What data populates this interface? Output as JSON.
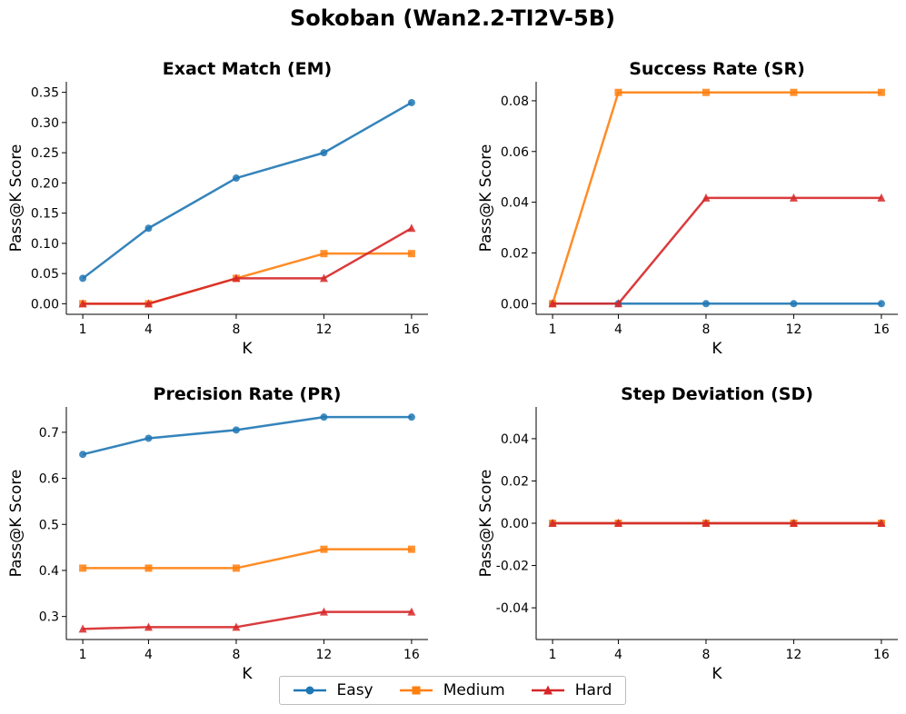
{
  "title": "Sokoban (Wan2.2-TI2V-5B)",
  "legend": [
    {
      "name": "Easy",
      "color": "#1f77b4",
      "marker": "circle"
    },
    {
      "name": "Medium",
      "color": "#ff7f0e",
      "marker": "square"
    },
    {
      "name": "Hard",
      "color": "#d62728",
      "marker": "triangle"
    }
  ],
  "chart_data": [
    {
      "type": "line",
      "title": "Exact Match (EM)",
      "xlabel": "K",
      "ylabel": "Pass@K Score",
      "x": [
        1,
        4,
        8,
        12,
        16
      ],
      "xticks": [
        "1",
        "4",
        "8",
        "12",
        "16"
      ],
      "ylim": [
        -0.0175,
        0.3675
      ],
      "yticks": [
        "0.00",
        "0.05",
        "0.10",
        "0.15",
        "0.20",
        "0.25",
        "0.30",
        "0.35"
      ],
      "ytick_values": [
        0,
        0.05,
        0.1,
        0.15,
        0.2,
        0.25,
        0.3,
        0.35
      ],
      "series": [
        {
          "name": "Easy",
          "values": [
            0.042,
            0.125,
            0.208,
            0.25,
            0.333
          ]
        },
        {
          "name": "Medium",
          "values": [
            0.0,
            0.0,
            0.042,
            0.083,
            0.083
          ]
        },
        {
          "name": "Hard",
          "values": [
            0.0,
            0.0,
            0.042,
            0.042,
            0.125
          ]
        }
      ]
    },
    {
      "type": "line",
      "title": "Success Rate (SR)",
      "xlabel": "K",
      "ylabel": "Pass@K Score",
      "x": [
        1,
        4,
        8,
        12,
        16
      ],
      "xticks": [
        "1",
        "4",
        "8",
        "12",
        "16"
      ],
      "ylim": [
        -0.0042,
        0.0875
      ],
      "yticks": [
        "0.00",
        "0.02",
        "0.04",
        "0.06",
        "0.08"
      ],
      "ytick_values": [
        0,
        0.02,
        0.04,
        0.06,
        0.08
      ],
      "series": [
        {
          "name": "Easy",
          "values": [
            0.0,
            0.0,
            0.0,
            0.0,
            0.0
          ]
        },
        {
          "name": "Medium",
          "values": [
            0.0,
            0.0833,
            0.0833,
            0.0833,
            0.0833
          ]
        },
        {
          "name": "Hard",
          "values": [
            0.0,
            0.0,
            0.0417,
            0.0417,
            0.0417
          ]
        }
      ]
    },
    {
      "type": "line",
      "title": "Precision Rate (PR)",
      "xlabel": "K",
      "ylabel": "Pass@K Score",
      "x": [
        1,
        4,
        8,
        12,
        16
      ],
      "xticks": [
        "1",
        "4",
        "8",
        "12",
        "16"
      ],
      "ylim": [
        0.25,
        0.755
      ],
      "yticks": [
        "0.3",
        "0.4",
        "0.5",
        "0.6",
        "0.7"
      ],
      "ytick_values": [
        0.3,
        0.4,
        0.5,
        0.6,
        0.7
      ],
      "series": [
        {
          "name": "Easy",
          "values": [
            0.652,
            0.687,
            0.705,
            0.733,
            0.733
          ]
        },
        {
          "name": "Medium",
          "values": [
            0.405,
            0.405,
            0.405,
            0.446,
            0.446
          ]
        },
        {
          "name": "Hard",
          "values": [
            0.273,
            0.277,
            0.277,
            0.31,
            0.31
          ]
        }
      ]
    },
    {
      "type": "line",
      "title": "Step Deviation (SD)",
      "xlabel": "K",
      "ylabel": "Pass@K Score",
      "x": [
        1,
        4,
        8,
        12,
        16
      ],
      "xticks": [
        "1",
        "4",
        "8",
        "12",
        "16"
      ],
      "ylim": [
        -0.055,
        0.055
      ],
      "yticks": [
        "-0.04",
        "-0.02",
        "0.00",
        "0.02",
        "0.04"
      ],
      "ytick_values": [
        -0.04,
        -0.02,
        0,
        0.02,
        0.04
      ],
      "series": [
        {
          "name": "Easy",
          "values": [
            0.0,
            0.0,
            0.0,
            0.0,
            0.0
          ]
        },
        {
          "name": "Medium",
          "values": [
            0.0,
            0.0,
            0.0,
            0.0,
            0.0
          ]
        },
        {
          "name": "Hard",
          "values": [
            0.0,
            0.0,
            0.0,
            0.0,
            0.0
          ]
        }
      ]
    }
  ]
}
